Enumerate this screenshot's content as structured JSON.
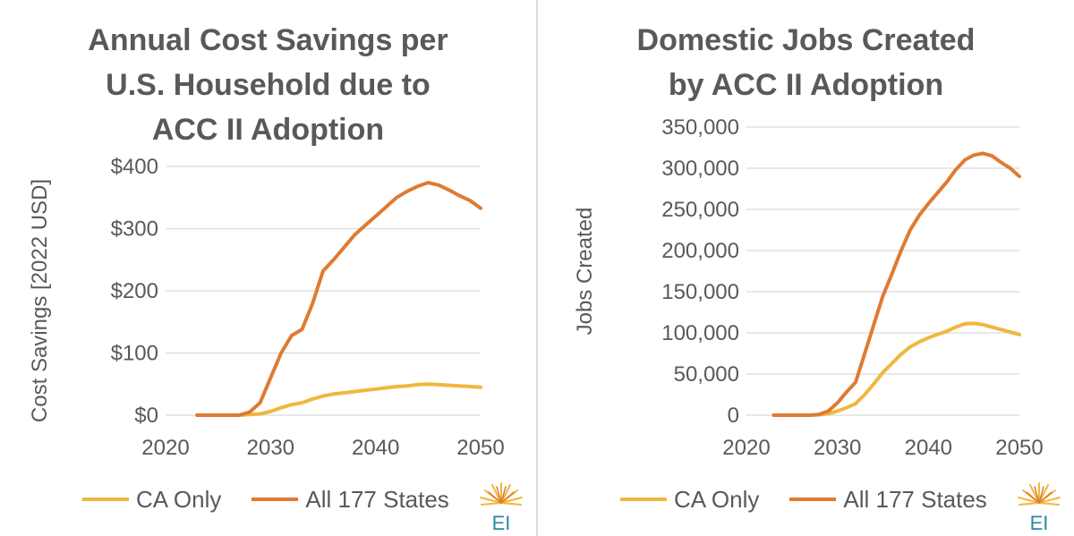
{
  "colors": {
    "ca_only": "#F0B73E",
    "all_states": "#E07A32",
    "axis": "#d9d9d9",
    "text": "#595959"
  },
  "chart_data": [
    {
      "type": "line",
      "title_lines": [
        "Annual Cost Savings per",
        "U.S. Household due to",
        "ACC II Adoption"
      ],
      "xlabel": "",
      "ylabel": "Cost Savings [2022 USD]",
      "xlim": [
        2020,
        2050
      ],
      "ylim": [
        0,
        400
      ],
      "x_ticks": [
        2020,
        2030,
        2040,
        2050
      ],
      "x_tick_labels": [
        "2020",
        "2030",
        "2040",
        "2050"
      ],
      "y_ticks": [
        0,
        100,
        200,
        300,
        400
      ],
      "y_tick_labels": [
        "$0",
        "$100",
        "$200",
        "$300",
        "$400"
      ],
      "grid": true,
      "legend_position": "bottom",
      "series": [
        {
          "name": "CA Only",
          "color_key": "ca_only",
          "x": [
            2023,
            2024,
            2025,
            2026,
            2027,
            2028,
            2029,
            2030,
            2031,
            2032,
            2033,
            2034,
            2035,
            2036,
            2037,
            2038,
            2039,
            2040,
            2041,
            2042,
            2043,
            2044,
            2045,
            2046,
            2047,
            2048,
            2049,
            2050
          ],
          "y": [
            0,
            0,
            0,
            0,
            0,
            1,
            2,
            6,
            12,
            17,
            20,
            26,
            31,
            34,
            36,
            38,
            40,
            42,
            44,
            46,
            47,
            49,
            50,
            49,
            48,
            47,
            46,
            45
          ]
        },
        {
          "name": "All 177 States",
          "color_key": "all_states",
          "x": [
            2023,
            2024,
            2025,
            2026,
            2027,
            2028,
            2029,
            2030,
            2031,
            2032,
            2033,
            2034,
            2035,
            2036,
            2037,
            2038,
            2039,
            2040,
            2041,
            2042,
            2043,
            2044,
            2045,
            2046,
            2047,
            2048,
            2049,
            2050
          ],
          "y": [
            0,
            0,
            0,
            0,
            0,
            5,
            20,
            60,
            100,
            128,
            138,
            180,
            232,
            250,
            270,
            290,
            305,
            320,
            335,
            350,
            360,
            368,
            374,
            370,
            362,
            353,
            345,
            333
          ]
        }
      ],
      "legend": [
        "CA Only",
        "All 177 States"
      ],
      "logo_text": "EI"
    },
    {
      "type": "line",
      "title_lines": [
        "Domestic Jobs Created",
        "by ACC II Adoption"
      ],
      "xlabel": "",
      "ylabel": "Jobs Created",
      "xlim": [
        2020,
        2050
      ],
      "ylim": [
        0,
        350000
      ],
      "x_ticks": [
        2020,
        2030,
        2040,
        2050
      ],
      "x_tick_labels": [
        "2020",
        "2030",
        "2040",
        "2050"
      ],
      "y_ticks": [
        0,
        50000,
        100000,
        150000,
        200000,
        250000,
        300000,
        350000
      ],
      "y_tick_labels": [
        "0",
        "50,000",
        "100,000",
        "150,000",
        "200,000",
        "250,000",
        "300,000",
        "350,000"
      ],
      "grid": true,
      "legend_position": "bottom",
      "series": [
        {
          "name": "CA Only",
          "color_key": "ca_only",
          "x": [
            2023,
            2024,
            2025,
            2026,
            2027,
            2028,
            2029,
            2030,
            2031,
            2032,
            2033,
            2034,
            2035,
            2036,
            2037,
            2038,
            2039,
            2040,
            2041,
            2042,
            2043,
            2044,
            2045,
            2046,
            2047,
            2048,
            2049,
            2050
          ],
          "y": [
            0,
            0,
            0,
            0,
            0,
            500,
            2000,
            5000,
            9000,
            14000,
            25000,
            38000,
            52000,
            63000,
            74000,
            83000,
            89000,
            94000,
            98000,
            102000,
            107000,
            111000,
            111500,
            110000,
            107000,
            104000,
            101000,
            98000
          ]
        },
        {
          "name": "All 177 States",
          "color_key": "all_states",
          "x": [
            2023,
            2024,
            2025,
            2026,
            2027,
            2028,
            2029,
            2030,
            2031,
            2032,
            2033,
            2034,
            2035,
            2036,
            2037,
            2038,
            2039,
            2040,
            2041,
            2042,
            2043,
            2044,
            2045,
            2046,
            2047,
            2048,
            2049,
            2050
          ],
          "y": [
            0,
            0,
            0,
            0,
            0,
            1000,
            5000,
            15000,
            28000,
            40000,
            75000,
            110000,
            145000,
            172000,
            200000,
            225000,
            243000,
            257000,
            270000,
            283000,
            298000,
            310000,
            316000,
            318000,
            315000,
            307000,
            300000,
            290000
          ]
        }
      ],
      "legend": [
        "CA Only",
        "All 177 States"
      ],
      "logo_text": "EI"
    }
  ]
}
